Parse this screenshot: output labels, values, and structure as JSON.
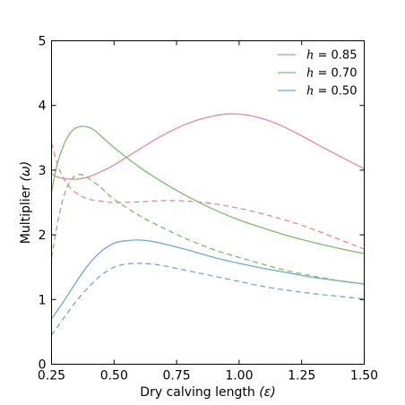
{
  "chart_data": {
    "type": "line",
    "xlabel": "Dry calving length",
    "xlabel_symbol": "(ε)",
    "ylabel": "Multiplier",
    "ylabel_symbol": "(ω)",
    "xlim": [
      0.25,
      1.5
    ],
    "ylim": [
      0,
      5
    ],
    "x_ticks": [
      0.25,
      0.5,
      0.75,
      1.0,
      1.25,
      1.5
    ],
    "x_tick_labels": [
      "0.25",
      "0.50",
      "0.75",
      "1.00",
      "1.25",
      "1.50"
    ],
    "y_ticks": [
      0,
      1,
      2,
      3,
      4,
      5
    ],
    "y_tick_labels": [
      "0",
      "1",
      "2",
      "3",
      "4",
      "5"
    ],
    "grid": false,
    "legend_position": "top-right",
    "legend_var": "h",
    "series": [
      {
        "name": "= 0.85",
        "color": "#e8889a",
        "style": "solid",
        "x": [
          0.25,
          0.27,
          0.3,
          0.35,
          0.4,
          0.45,
          0.5,
          0.6,
          0.7,
          0.8,
          0.9,
          0.97,
          1.05,
          1.15,
          1.25,
          1.35,
          1.5
        ],
        "y": [
          2.95,
          2.9,
          2.87,
          2.86,
          2.9,
          2.98,
          3.08,
          3.32,
          3.55,
          3.73,
          3.84,
          3.87,
          3.84,
          3.72,
          3.53,
          3.32,
          3.02
        ]
      },
      {
        "name": "= 0.70",
        "color": "#7cbd6a",
        "style": "solid",
        "x": [
          0.25,
          0.27,
          0.3,
          0.33,
          0.36,
          0.39,
          0.42,
          0.45,
          0.5,
          0.6,
          0.7,
          0.8,
          0.9,
          1.0,
          1.1,
          1.2,
          1.3,
          1.4,
          1.5
        ],
        "y": [
          2.65,
          3.05,
          3.4,
          3.6,
          3.67,
          3.67,
          3.62,
          3.52,
          3.35,
          3.05,
          2.8,
          2.58,
          2.39,
          2.23,
          2.1,
          1.98,
          1.88,
          1.79,
          1.71
        ]
      },
      {
        "name": "= 0.50",
        "color": "#6fa8d8",
        "style": "solid",
        "x": [
          0.25,
          0.3,
          0.35,
          0.4,
          0.45,
          0.5,
          0.55,
          0.6,
          0.65,
          0.7,
          0.8,
          0.9,
          1.0,
          1.1,
          1.2,
          1.3,
          1.4,
          1.5
        ],
        "y": [
          0.7,
          0.98,
          1.28,
          1.55,
          1.75,
          1.87,
          1.91,
          1.92,
          1.9,
          1.86,
          1.76,
          1.65,
          1.56,
          1.48,
          1.41,
          1.34,
          1.29,
          1.24
        ]
      },
      {
        "name": "",
        "color": "#e8889a",
        "style": "dashed",
        "x": [
          0.25,
          0.28,
          0.32,
          0.36,
          0.4,
          0.45,
          0.5,
          0.6,
          0.7,
          0.8,
          0.9,
          1.0,
          1.1,
          1.2,
          1.3,
          1.4,
          1.5
        ],
        "y": [
          3.42,
          3.02,
          2.75,
          2.62,
          2.55,
          2.52,
          2.5,
          2.51,
          2.53,
          2.52,
          2.48,
          2.41,
          2.32,
          2.21,
          2.08,
          1.93,
          1.78
        ]
      },
      {
        "name": "",
        "color": "#7cbd6a",
        "style": "dashed",
        "x": [
          0.25,
          0.28,
          0.31,
          0.34,
          0.37,
          0.4,
          0.45,
          0.5,
          0.6,
          0.7,
          0.8,
          0.9,
          1.0,
          1.1,
          1.2,
          1.3,
          1.4,
          1.5
        ],
        "y": [
          1.65,
          2.3,
          2.72,
          2.9,
          2.93,
          2.87,
          2.72,
          2.55,
          2.3,
          2.1,
          1.92,
          1.77,
          1.65,
          1.54,
          1.44,
          1.36,
          1.29,
          1.24
        ]
      },
      {
        "name": "",
        "color": "#6fa8d8",
        "style": "dashed",
        "x": [
          0.25,
          0.3,
          0.35,
          0.4,
          0.45,
          0.5,
          0.55,
          0.6,
          0.65,
          0.7,
          0.8,
          0.9,
          1.0,
          1.1,
          1.2,
          1.3,
          1.4,
          1.5
        ],
        "y": [
          0.45,
          0.72,
          0.98,
          1.2,
          1.38,
          1.5,
          1.55,
          1.56,
          1.55,
          1.52,
          1.44,
          1.36,
          1.28,
          1.2,
          1.14,
          1.09,
          1.05,
          1.01
        ]
      }
    ]
  }
}
